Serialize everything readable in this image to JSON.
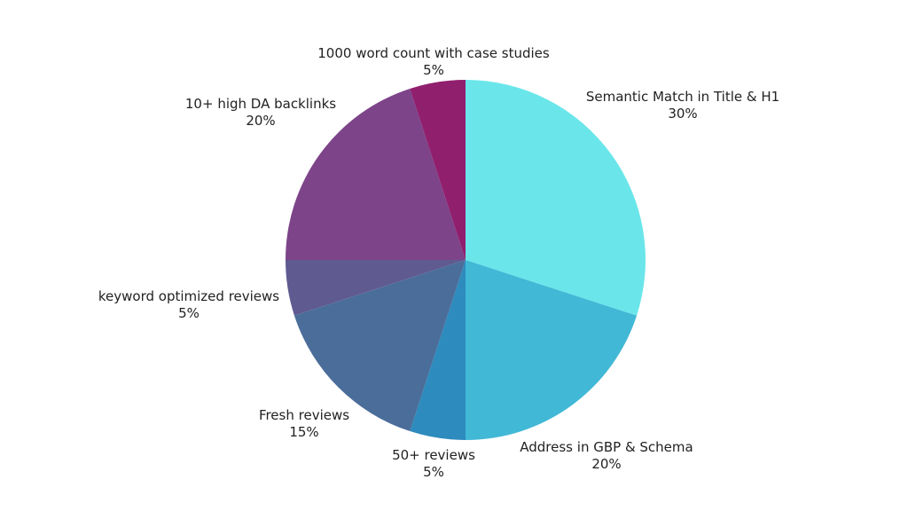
{
  "chart_data": {
    "type": "pie",
    "title": "",
    "start_angle_deg": 0,
    "direction": "clockwise",
    "slices": [
      {
        "label": "Semantic Match in Title & H1",
        "value": 30,
        "value_label": "30%",
        "color": "#6ae6ea"
      },
      {
        "label": "Address in GBP & Schema",
        "value": 20,
        "value_label": "20%",
        "color": "#41b8d6"
      },
      {
        "label": "50+ reviews",
        "value": 5,
        "value_label": "5%",
        "color": "#2e8bbd"
      },
      {
        "label": "Fresh reviews",
        "value": 15,
        "value_label": "15%",
        "color": "#4a6d9a"
      },
      {
        "label": "keyword optimized reviews",
        "value": 5,
        "value_label": "5%",
        "color": "#5f5b91"
      },
      {
        "label": "10+ high DA backlinks",
        "value": 20,
        "value_label": "20%",
        "color": "#7d4489"
      },
      {
        "label": "1000 word count with case studies",
        "value": 5,
        "value_label": "5%",
        "color": "#901f6e"
      }
    ],
    "legend": "none"
  }
}
